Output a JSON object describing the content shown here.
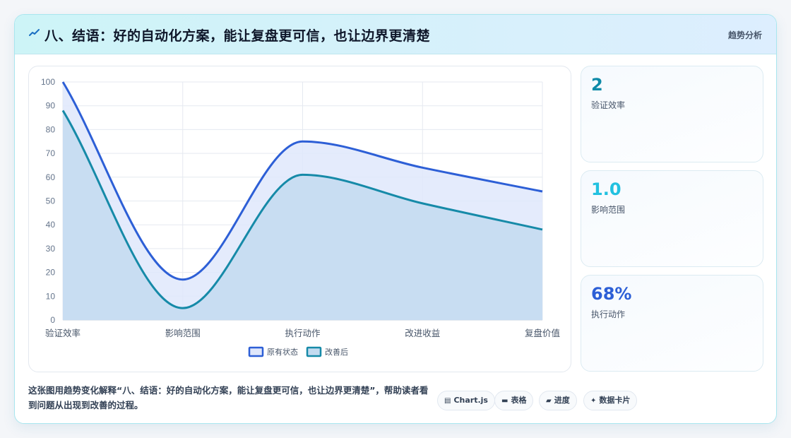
{
  "header": {
    "title": "八、结语：好的自动化方案，能让复盘更可信，也让边界更清楚",
    "tag": "趋势分析",
    "icon": "trend-icon"
  },
  "chart_data": {
    "type": "line",
    "categories": [
      "验证效率",
      "影响范围",
      "执行动作",
      "改进收益",
      "复盘价值"
    ],
    "series": [
      {
        "name": "原有状态",
        "values": [
          100,
          17,
          75,
          64,
          54
        ],
        "color": "#2d5fd6",
        "fill": "#dfe7fb"
      },
      {
        "name": "改善后",
        "values": [
          88,
          5,
          61,
          49,
          38
        ],
        "color": "#168aa8",
        "fill": "#c3dbf0"
      }
    ],
    "ylim": [
      0,
      100
    ],
    "yticks": [
      "0",
      "10",
      "20",
      "30",
      "40",
      "50",
      "60",
      "70",
      "80",
      "90",
      "100"
    ],
    "area_fill": true,
    "smooth": true,
    "grid": true,
    "legend_position": "bottom"
  },
  "stats": [
    {
      "value": "2",
      "label": "验证效率",
      "color": "#0e8aa8"
    },
    {
      "value": "1.0",
      "label": "影响范围",
      "color": "#22c1e0"
    },
    {
      "value": "68%",
      "label": "执行动作",
      "color": "#2d5fd6"
    }
  ],
  "footer": {
    "description": "这张图用趋势变化解释“八、结语：好的自动化方案，能让复盘更可信，也让边界更清楚”，帮助读者看到问题从出现到改善的过程。",
    "chips": [
      {
        "icon": "chart-icon",
        "glyph": "▤",
        "label": "Chart.js"
      },
      {
        "icon": "table-icon",
        "glyph": "▬",
        "label": "表格"
      },
      {
        "icon": "progress-icon",
        "glyph": "▰",
        "label": "进度"
      },
      {
        "icon": "sparkle-icon",
        "glyph": "✦",
        "label": "数据卡片"
      }
    ]
  }
}
